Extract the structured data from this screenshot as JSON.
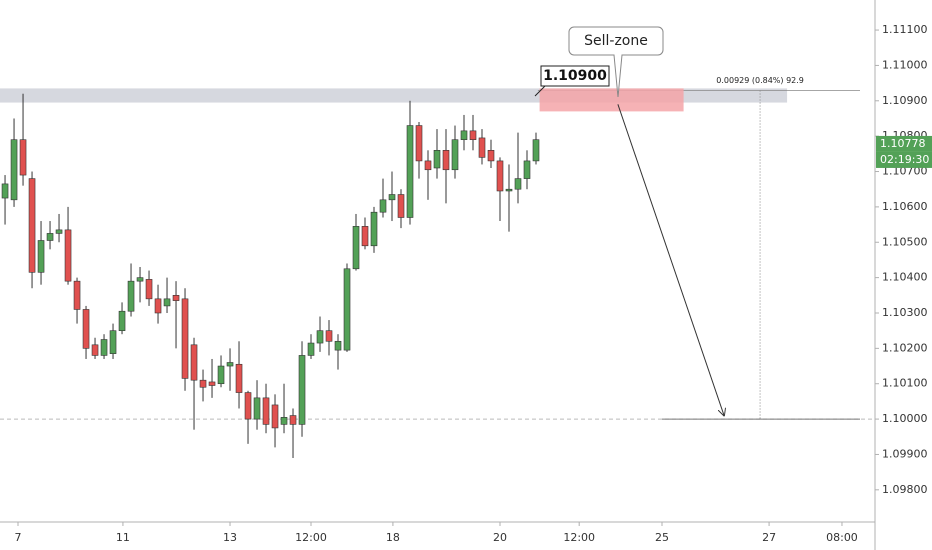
{
  "chart_data": {
    "type": "candlestick",
    "up_color": "#53a157",
    "down_color": "#e0514f",
    "x": [
      0,
      1,
      2,
      3,
      4,
      5,
      6,
      7,
      8,
      9,
      10,
      11,
      12,
      13,
      14,
      15,
      16,
      17,
      18,
      19,
      20,
      21,
      22,
      23,
      24,
      25,
      26,
      27,
      28,
      29,
      30,
      31,
      32,
      33,
      34,
      35,
      36,
      37,
      38,
      39,
      40,
      41,
      42,
      43,
      44,
      45,
      46,
      47,
      48,
      49,
      50,
      51,
      52,
      53,
      54,
      55,
      56,
      57,
      58,
      59
    ],
    "open": [
      1.10625,
      1.1062,
      1.1079,
      1.1068,
      1.10415,
      1.10505,
      1.10525,
      1.10535,
      1.1039,
      1.1031,
      1.1021,
      1.1018,
      1.10185,
      1.1025,
      1.10305,
      1.1039,
      1.10395,
      1.1034,
      1.1032,
      1.1035,
      1.1034,
      1.1021,
      1.1011,
      1.10105,
      1.101,
      1.1015,
      1.10155,
      1.10075,
      1.1,
      1.1006,
      1.1004,
      1.09985,
      1.1001,
      1.09985,
      1.1018,
      1.10215,
      1.1025,
      1.10195,
      1.10195,
      1.10425,
      1.10545,
      1.1049,
      1.10585,
      1.1062,
      1.10635,
      1.1057,
      1.1083,
      1.1073,
      1.1071,
      1.1076,
      1.10705,
      1.1079,
      1.10815,
      1.10795,
      1.1076,
      1.1073,
      1.10645,
      1.1065,
      1.1068,
      1.1073
    ],
    "high": [
      1.1069,
      1.1085,
      1.1092,
      1.107,
      1.1056,
      1.1056,
      1.1058,
      1.106,
      1.104,
      1.1032,
      1.1023,
      1.1024,
      1.1027,
      1.1033,
      1.1044,
      1.1043,
      1.1042,
      1.1038,
      1.104,
      1.1039,
      1.1037,
      1.1023,
      1.1014,
      1.1017,
      1.1018,
      1.102,
      1.1022,
      1.1008,
      1.1011,
      1.101,
      1.1007,
      1.101,
      1.1003,
      1.1022,
      1.1024,
      1.1029,
      1.1028,
      1.1024,
      1.1044,
      1.1058,
      1.1057,
      1.106,
      1.1068,
      1.107,
      1.1065,
      1.109,
      1.1084,
      1.1076,
      1.1082,
      1.1082,
      1.1083,
      1.1086,
      1.1086,
      1.1082,
      1.1079,
      1.1074,
      1.1072,
      1.1081,
      1.1076,
      1.1081
    ],
    "low": [
      1.1055,
      1.106,
      1.1066,
      1.1037,
      1.1038,
      1.1048,
      1.105,
      1.1038,
      1.1027,
      1.1017,
      1.1017,
      1.1017,
      1.1017,
      1.1024,
      1.1029,
      1.1033,
      1.1032,
      1.1027,
      1.103,
      1.102,
      1.1008,
      1.0997,
      1.1005,
      1.1006,
      1.1009,
      1.1008,
      1.1003,
      1.0993,
      1.0997,
      1.0996,
      1.0992,
      1.0996,
      1.0989,
      1.0995,
      1.1017,
      1.1019,
      1.1018,
      1.1014,
      1.1019,
      1.1042,
      1.1048,
      1.1047,
      1.1057,
      1.1056,
      1.1054,
      1.1055,
      1.1068,
      1.1062,
      1.1068,
      1.1061,
      1.1068,
      1.1076,
      1.1076,
      1.1072,
      1.1071,
      1.1056,
      1.1053,
      1.1061,
      1.1065,
      1.1072
    ],
    "close": [
      1.10665,
      1.1079,
      1.1069,
      1.10415,
      1.10505,
      1.10525,
      1.10535,
      1.1039,
      1.1031,
      1.102,
      1.1018,
      1.10225,
      1.1025,
      1.10305,
      1.1039,
      1.104,
      1.1034,
      1.103,
      1.1034,
      1.10335,
      1.10115,
      1.1011,
      1.1009,
      1.10095,
      1.1015,
      1.1016,
      1.10075,
      1.1,
      1.1006,
      1.09985,
      1.09975,
      1.10005,
      1.09985,
      1.1018,
      1.10215,
      1.1025,
      1.1022,
      1.1022,
      1.10425,
      1.10545,
      1.1049,
      1.10585,
      1.1062,
      1.10635,
      1.1057,
      1.1083,
      1.1073,
      1.10705,
      1.1076,
      1.10705,
      1.1079,
      1.10815,
      1.1079,
      1.1074,
      1.1073,
      1.10645,
      1.1065,
      1.1068,
      1.1073,
      1.1079
    ],
    "xlim": [
      -0.56,
      96.67
    ],
    "ylim": [
      1.09709,
      1.11185
    ],
    "xticks": [
      {
        "value": 1.44,
        "label": "7"
      },
      {
        "value": 13.1,
        "label": "11"
      },
      {
        "value": 25,
        "label": "13"
      },
      {
        "value": 34,
        "label": "12:00"
      },
      {
        "value": 43.1,
        "label": "18"
      },
      {
        "value": 55,
        "label": "20"
      },
      {
        "value": 63.8,
        "label": "12:00"
      },
      {
        "value": 73,
        "label": "25"
      },
      {
        "value": 84.9,
        "label": "27"
      },
      {
        "value": 93,
        "label": "08:00"
      }
    ],
    "yticks": [
      {
        "value": 1.111,
        "label": "1.11100"
      },
      {
        "value": 1.11,
        "label": "1.11000"
      },
      {
        "value": 1.109,
        "label": "1.10900"
      },
      {
        "value": 1.108,
        "label": "1.10800"
      },
      {
        "value": 1.107,
        "label": "1.10700"
      },
      {
        "value": 1.106,
        "label": "1.10600"
      },
      {
        "value": 1.105,
        "label": "1.10500"
      },
      {
        "value": 1.104,
        "label": "1.10400"
      },
      {
        "value": 1.103,
        "label": "1.10300"
      },
      {
        "value": 1.102,
        "label": "1.10200"
      },
      {
        "value": 1.101,
        "label": "1.10100"
      },
      {
        "value": 1.1,
        "label": "1.10000"
      },
      {
        "value": 1.099,
        "label": "1.09900"
      },
      {
        "value": 1.098,
        "label": "1.09800"
      }
    ],
    "resistance_zone": {
      "low": 1.10895,
      "high": 1.10935,
      "x_end": 86.9
    },
    "sell_zone": {
      "x": [
        59.4,
        75.4
      ],
      "low": 1.1087,
      "high": 1.10935
    },
    "price_label": "1.10900",
    "callout": "Sell-zone",
    "arrow": {
      "x": [
        68.1,
        79.9
      ],
      "y": [
        1.1089,
        1.1001
      ]
    },
    "target": {
      "level": 1.1,
      "x_start": 73
    },
    "measure": {
      "x": 83.9,
      "top": 1.10929,
      "label": "0.00929 (0.84%) 92.9"
    },
    "last_price": 1.10778,
    "timer": "02:19:30"
  }
}
